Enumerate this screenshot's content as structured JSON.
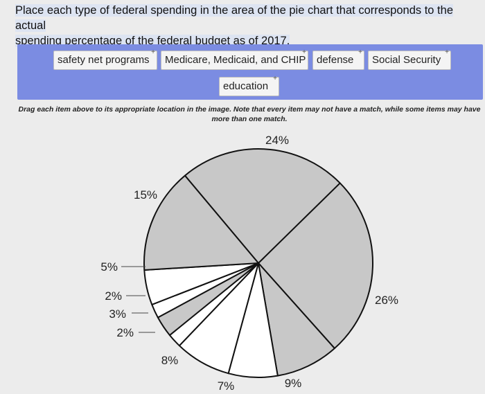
{
  "question": {
    "line1": "Place each type of federal spending in the area of the pie chart that corresponds to the actual",
    "line2": "spending percentage of the federal budget as of 2017."
  },
  "drag_items": [
    {
      "label": "safety net programs"
    },
    {
      "label": "Medicare, Medicaid, and CHIP"
    },
    {
      "label": "defense"
    },
    {
      "label": "Social Security"
    },
    {
      "label": "education"
    }
  ],
  "instructions": {
    "line1": "Drag each item above to its appropriate location in the image. Note that every item may not have a match, while some items may have",
    "line2": "more than one match."
  },
  "chart_data": {
    "type": "pie",
    "slices": [
      {
        "label": "24%",
        "value": 24,
        "color": "#c8c8c8"
      },
      {
        "label": "26%",
        "value": 26,
        "color": "#c8c8c8"
      },
      {
        "label": "9%",
        "value": 9,
        "color": "#c8c8c8"
      },
      {
        "label": "7%",
        "value": 7,
        "color": "#ffffff"
      },
      {
        "label": "8%",
        "value": 8,
        "color": "#ffffff"
      },
      {
        "label": "2%",
        "value": 2,
        "color": "#ffffff"
      },
      {
        "label": "3%",
        "value": 3,
        "color": "#c8c8c8"
      },
      {
        "label": "2%",
        "value": 2,
        "color": "#ffffff"
      },
      {
        "label": "5%",
        "value": 5,
        "color": "#ffffff"
      },
      {
        "label": "15%",
        "value": 15,
        "color": "#c8c8c8"
      }
    ]
  }
}
